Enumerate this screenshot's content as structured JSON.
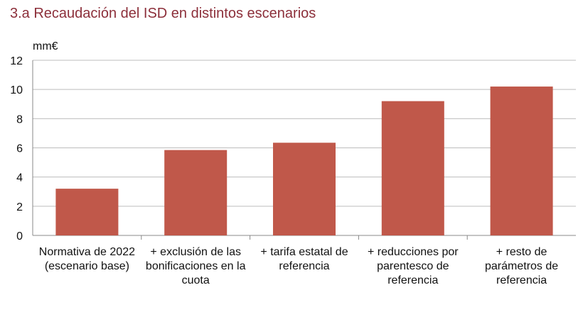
{
  "title": "3.a  Recaudación del ISD en distintos escenarios",
  "chart_data": {
    "type": "bar",
    "title": "3.a  Recaudación del ISD en distintos escenarios",
    "ylabel": "mm€",
    "xlabel": "",
    "ylim": [
      0,
      12
    ],
    "yticks": [
      0,
      2,
      4,
      6,
      8,
      10,
      12
    ],
    "grid": true,
    "bar_color": "#c0584a",
    "categories": [
      [
        "Normativa de 2022",
        "(escenario base)"
      ],
      [
        "+ exclusión de las",
        "bonificaciones en la",
        "cuota"
      ],
      [
        "+ tarifa estatal de",
        "referencia"
      ],
      [
        "+ reducciones por",
        "parentesco de",
        "referencia"
      ],
      [
        "+ resto de",
        "parámetros de",
        "referencia"
      ]
    ],
    "values": [
      3.2,
      5.85,
      6.35,
      9.2,
      10.2
    ]
  }
}
